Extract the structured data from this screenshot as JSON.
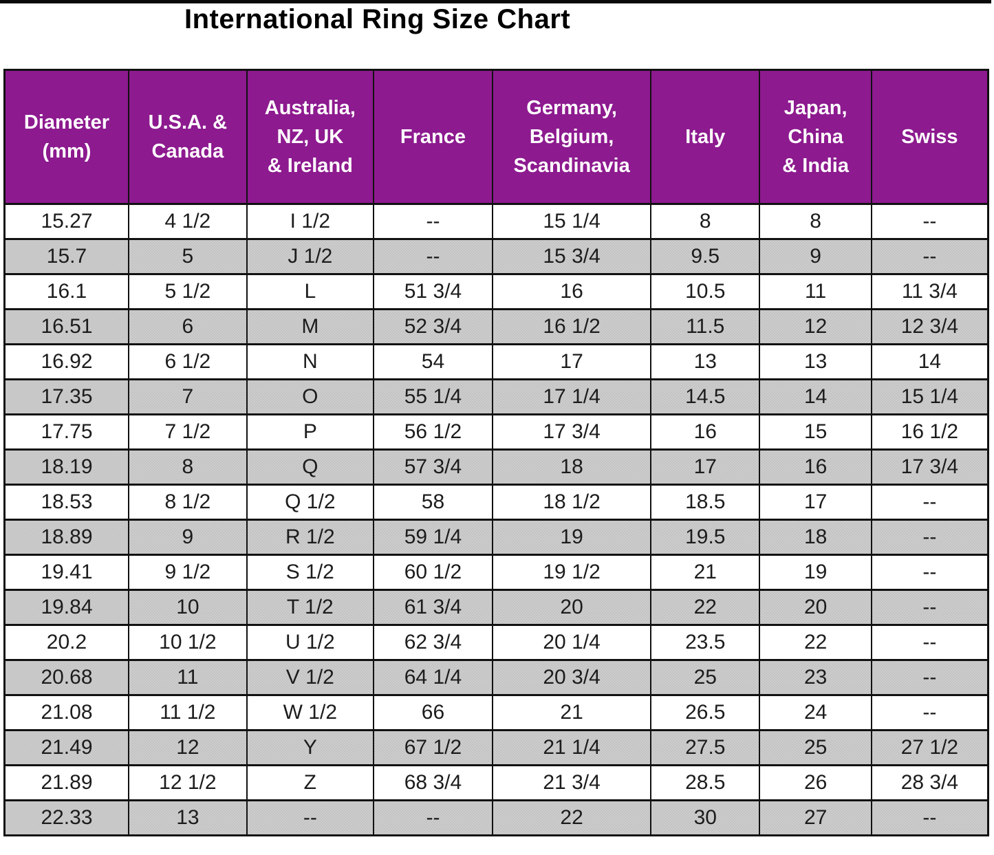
{
  "title": "International Ring Size Chart",
  "colors": {
    "header_bg": "#8D1A8F",
    "header_text": "#FFFFFF",
    "row_bg": "#FFFFFF",
    "row_alt_bg": "#C9C9C9",
    "border": "#111111",
    "title_text": "#000000"
  },
  "chart_data": {
    "type": "table",
    "title": "International Ring Size Chart",
    "empty_marker": "--",
    "legend_position": "none",
    "grid": true,
    "row_striping": "alternating white and dotted gray, purple header",
    "columns": [
      "Diameter\n(mm)",
      "U.S.A. &\nCanada",
      "Australia,\nNZ, UK\n& Ireland",
      "France",
      "Germany,\nBelgium,\nScandinavia",
      "Italy",
      "Japan,\nChina\n& India",
      "Swiss"
    ],
    "rows": [
      [
        "15.27",
        "4 1/2",
        "I 1/2",
        "--",
        "15 1/4",
        "8",
        "8",
        "--"
      ],
      [
        "15.7",
        "5",
        "J 1/2",
        "--",
        "15 3/4",
        "9.5",
        "9",
        "--"
      ],
      [
        "16.1",
        "5 1/2",
        "L",
        "51 3/4",
        "16",
        "10.5",
        "11",
        "11 3/4"
      ],
      [
        "16.51",
        "6",
        "M",
        "52 3/4",
        "16 1/2",
        "11.5",
        "12",
        "12 3/4"
      ],
      [
        "16.92",
        "6 1/2",
        "N",
        "54",
        "17",
        "13",
        "13",
        "14"
      ],
      [
        "17.35",
        "7",
        "O",
        "55 1/4",
        "17 1/4",
        "14.5",
        "14",
        "15 1/4"
      ],
      [
        "17.75",
        "7 1/2",
        "P",
        "56 1/2",
        "17 3/4",
        "16",
        "15",
        "16 1/2"
      ],
      [
        "18.19",
        "8",
        "Q",
        "57 3/4",
        "18",
        "17",
        "16",
        "17 3/4"
      ],
      [
        "18.53",
        "8 1/2",
        "Q 1/2",
        "58",
        "18 1/2",
        "18.5",
        "17",
        "--"
      ],
      [
        "18.89",
        "9",
        "R 1/2",
        "59 1/4",
        "19",
        "19.5",
        "18",
        "--"
      ],
      [
        "19.41",
        "9 1/2",
        "S 1/2",
        "60 1/2",
        "19 1/2",
        "21",
        "19",
        "--"
      ],
      [
        "19.84",
        "10",
        "T 1/2",
        "61 3/4",
        "20",
        "22",
        "20",
        "--"
      ],
      [
        "20.2",
        "10 1/2",
        "U 1/2",
        "62 3/4",
        "20 1/4",
        "23.5",
        "22",
        "--"
      ],
      [
        "20.68",
        "11",
        "V 1/2",
        "64 1/4",
        "20 3/4",
        "25",
        "23",
        "--"
      ],
      [
        "21.08",
        "11 1/2",
        "W 1/2",
        "66",
        "21",
        "26.5",
        "24",
        "--"
      ],
      [
        "21.49",
        "12",
        "Y",
        "67 1/2",
        "21 1/4",
        "27.5",
        "25",
        "27 1/2"
      ],
      [
        "21.89",
        "12 1/2",
        "Z",
        "68 3/4",
        "21 3/4",
        "28.5",
        "26",
        "28 3/4"
      ],
      [
        "22.33",
        "13",
        "--",
        "--",
        "22",
        "30",
        "27",
        "--"
      ]
    ]
  }
}
